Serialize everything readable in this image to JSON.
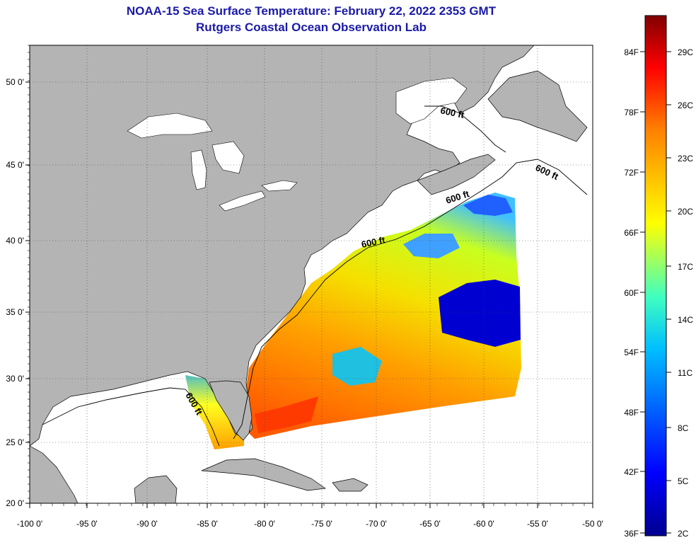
{
  "title_line1": "NOAA-15 Sea Surface Temperature:  February 22, 2022 2353 GMT",
  "title_line2": "Rutgers Coastal Ocean Observation Lab",
  "lat_ticks": [
    "50 0'",
    "45 0'",
    "40 0'",
    "35 0'",
    "30 0'",
    "25 0'",
    "20 0'"
  ],
  "lon_ticks": [
    "-100 0'",
    "-95 0'",
    "-90 0'",
    "-85 0'",
    "-80 0'",
    "-75 0'",
    "-70 0'",
    "-65 0'",
    "-60 0'",
    "-55 0'",
    "-50 0'"
  ],
  "contour_label": "600 ft",
  "colorbar": {
    "fahrenheit": [
      "84F",
      "78F",
      "72F",
      "66F",
      "60F",
      "54F",
      "48F",
      "42F",
      "36F"
    ],
    "celsius": [
      "29C",
      "26C",
      "23C",
      "20C",
      "17C",
      "14C",
      "11C",
      "8C",
      "5C",
      "2C"
    ]
  },
  "colors": {
    "land": "#b4b4b4",
    "title": "#1a1aa8",
    "colormap": [
      "#00008f",
      "#0000ff",
      "#0080ff",
      "#00ffff",
      "#80ff80",
      "#ffff00",
      "#ff8000",
      "#ff0000",
      "#800000"
    ]
  }
}
